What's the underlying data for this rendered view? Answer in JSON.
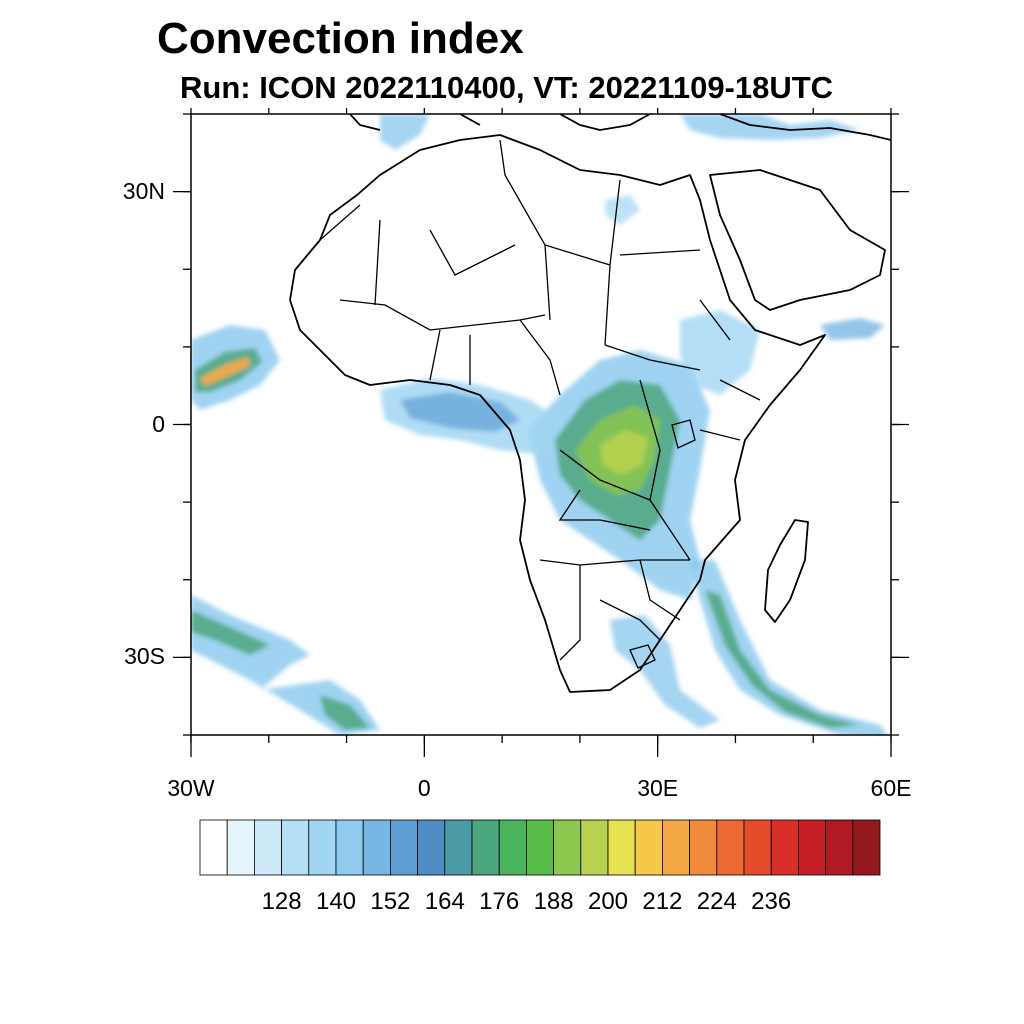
{
  "title": "Convection index",
  "subtitle": "Run: ICON 2022110400,  VT: 20221109-18UTC",
  "axes": {
    "lat_ticks": [
      {
        "value": 30,
        "label": "30N"
      },
      {
        "value": 0,
        "label": "0"
      },
      {
        "value": -30,
        "label": "30S"
      }
    ],
    "lon_ticks": [
      {
        "value": -30,
        "label": "30W"
      },
      {
        "value": 0,
        "label": "0"
      },
      {
        "value": 30,
        "label": "30E"
      },
      {
        "value": 60,
        "label": "60E"
      }
    ],
    "lon_range": [
      -30,
      60
    ],
    "lat_range": [
      -40,
      40
    ]
  },
  "colorbar": {
    "colors": [
      "#ffffff",
      "#e6f4fb",
      "#cde9f7",
      "#b4def4",
      "#a1d6f2",
      "#8ecbee",
      "#78b6e4",
      "#5f9fd6",
      "#4f8dc4",
      "#4b9aa6",
      "#4ca67e",
      "#4cb35d",
      "#58bd4a",
      "#8cc74e",
      "#b8d24f",
      "#e6e14f",
      "#f5c84a",
      "#f5a944",
      "#f18a3b",
      "#ec6a32",
      "#e54c2b",
      "#d92f29",
      "#c61f27",
      "#b01a23",
      "#951a1e"
    ],
    "labels": [
      "128",
      "140",
      "152",
      "164",
      "176",
      "188",
      "200",
      "212",
      "224",
      "236"
    ]
  }
}
